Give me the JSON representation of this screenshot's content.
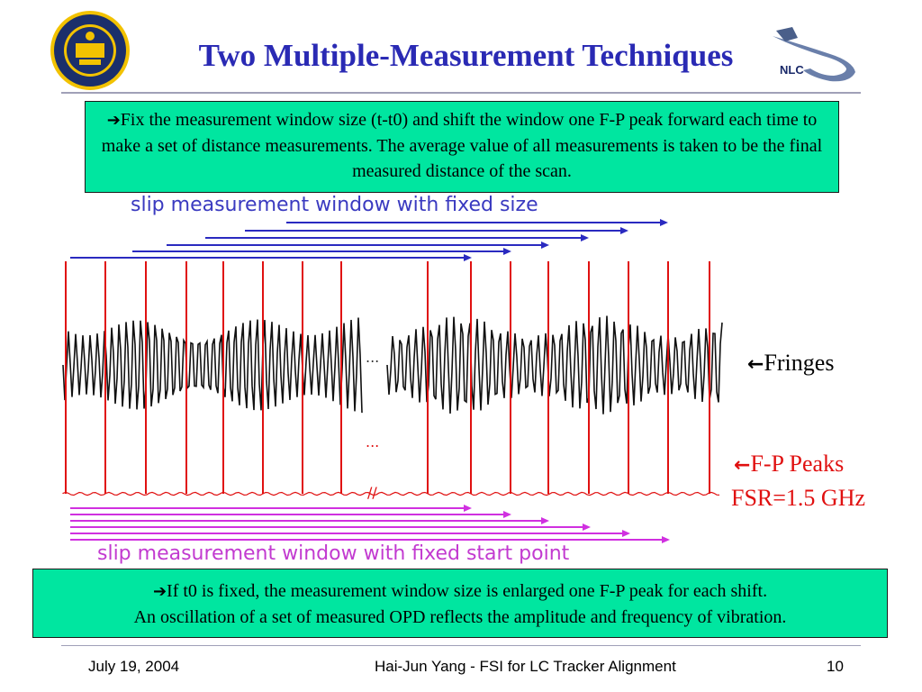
{
  "slide": {
    "title": "Two Multiple-Measurement Techniques",
    "top_box": {
      "text": "Fix the measurement window size (t-t0) and shift the window one F-P peak forward each time to make a set of distance measurements. The average value of all measurements is taken to be the final measured distance of the scan."
    },
    "slip_fixed_size_label": "slip measurement window with fixed size",
    "slip_fixed_start_label": "slip measurement window with fixed start point",
    "gap_marks": [
      "...",
      "...",
      "//"
    ],
    "fringes_label": "Fringes",
    "fp_peaks_label": "F-P Peaks",
    "fsr_label": "FSR=1.5 GHz",
    "bottom_box": {
      "line1": "If t0 is fixed, the measurement window size is enlarged one F-P peak for each shift.",
      "line2": "An oscillation of a set of measured OPD reflects the amplitude and frequency of vibration."
    },
    "footer": {
      "date": "July 19, 2004",
      "center": "Hai-Jun Yang - FSI for LC Tracker Alignment",
      "page": "10"
    },
    "logo_right_text": "NLC"
  },
  "colors": {
    "title": "#2a2ab4",
    "box_fill": "#00e6a0",
    "fringe": "#111111",
    "peaks": "#e01010",
    "arrows_top": "#2a2ac0",
    "arrows_bottom": "#d030e0"
  }
}
